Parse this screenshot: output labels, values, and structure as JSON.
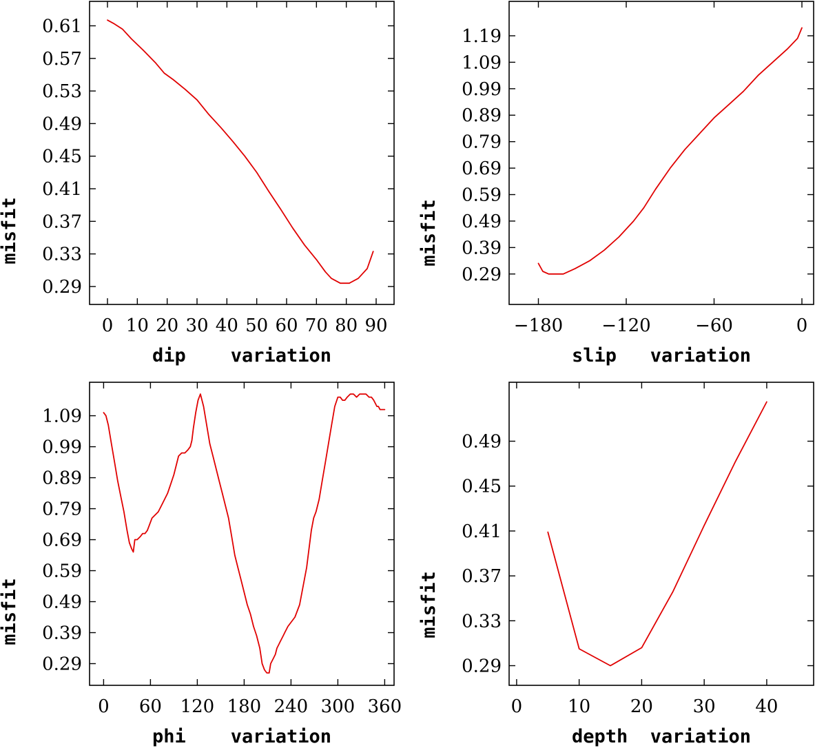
{
  "colors": {
    "series": "#e00000",
    "axes": "#000000",
    "background": "#ffffff"
  },
  "chart_data": [
    {
      "type": "line",
      "xlabel": "dip    variation",
      "ylabel": "misfit",
      "xlim": [
        -6,
        96
      ],
      "ylim": [
        0.268,
        0.64
      ],
      "xticks": [
        0,
        10,
        20,
        30,
        40,
        50,
        60,
        70,
        80,
        90
      ],
      "xtick_labels": [
        "0",
        "10",
        "20",
        "30",
        "40",
        "50",
        "60",
        "70",
        "80",
        "90"
      ],
      "yticks": [
        0.29,
        0.33,
        0.37,
        0.41,
        0.45,
        0.49,
        0.53,
        0.57,
        0.61
      ],
      "ytick_labels": [
        "0.29",
        "0.33",
        "0.37",
        "0.41",
        "0.45",
        "0.49",
        "0.53",
        "0.57",
        "0.61"
      ],
      "series": [
        {
          "name": "misfit",
          "x": [
            0,
            2,
            5,
            8,
            12,
            16,
            19,
            22,
            26,
            30,
            34,
            38,
            42,
            46,
            50,
            54,
            58,
            62,
            66,
            70,
            73,
            75,
            78,
            81,
            84,
            87,
            89
          ],
          "y": [
            0.617,
            0.613,
            0.606,
            0.594,
            0.58,
            0.565,
            0.552,
            0.544,
            0.532,
            0.519,
            0.501,
            0.485,
            0.468,
            0.45,
            0.43,
            0.407,
            0.385,
            0.362,
            0.341,
            0.323,
            0.308,
            0.3,
            0.294,
            0.294,
            0.3,
            0.312,
            0.333
          ]
        }
      ]
    },
    {
      "type": "line",
      "xlabel": "slip   variation",
      "ylabel": "misfit",
      "xlim": [
        -200,
        8
      ],
      "ylim": [
        0.175,
        1.32
      ],
      "xticks": [
        -180,
        -120,
        -60,
        0
      ],
      "xtick_labels": [
        "−180",
        "−120",
        "−60",
        "0"
      ],
      "yticks": [
        0.29,
        0.39,
        0.49,
        0.59,
        0.69,
        0.79,
        0.89,
        0.99,
        1.09,
        1.19
      ],
      "ytick_labels": [
        "0.29",
        "0.39",
        "0.49",
        "0.59",
        "0.69",
        "0.79",
        "0.89",
        "0.99",
        "1.09",
        "1.19"
      ],
      "series": [
        {
          "name": "misfit",
          "x": [
            -180,
            -177,
            -173,
            -168,
            -163,
            -155,
            -145,
            -135,
            -125,
            -115,
            -108,
            -100,
            -90,
            -80,
            -70,
            -60,
            -50,
            -40,
            -30,
            -20,
            -10,
            -3,
            0
          ],
          "y": [
            0.33,
            0.3,
            0.29,
            0.29,
            0.29,
            0.31,
            0.34,
            0.38,
            0.43,
            0.49,
            0.54,
            0.61,
            0.69,
            0.76,
            0.82,
            0.88,
            0.93,
            0.98,
            1.04,
            1.09,
            1.14,
            1.18,
            1.22
          ]
        }
      ]
    },
    {
      "type": "line",
      "xlabel": "phi    variation",
      "ylabel": "misfit",
      "xlim": [
        -18,
        372
      ],
      "ylim": [
        0.22,
        1.198
      ],
      "xticks": [
        0,
        60,
        120,
        180,
        240,
        300,
        360
      ],
      "xtick_labels": [
        "0",
        "60",
        "120",
        "180",
        "240",
        "300",
        "360"
      ],
      "yticks": [
        0.29,
        0.39,
        0.49,
        0.59,
        0.69,
        0.79,
        0.89,
        0.99,
        1.09
      ],
      "ytick_labels": [
        "0.29",
        "0.39",
        "0.49",
        "0.59",
        "0.69",
        "0.79",
        "0.89",
        "0.99",
        "1.09"
      ],
      "series": [
        {
          "name": "misfit",
          "x": [
            0,
            3,
            6,
            10,
            14,
            18,
            22,
            26,
            30,
            33,
            36,
            38,
            40,
            43,
            47,
            50,
            53,
            56,
            59,
            62,
            66,
            70,
            74,
            78,
            82,
            86,
            90,
            93,
            96,
            100,
            104,
            108,
            111,
            113,
            115,
            118,
            121,
            124,
            128,
            132,
            136,
            140,
            144,
            148,
            152,
            156,
            160,
            164,
            168,
            172,
            176,
            180,
            184,
            188,
            192,
            196,
            200,
            203,
            206,
            209,
            212,
            214,
            216,
            218,
            220,
            222,
            224,
            226,
            228,
            230,
            232,
            234,
            236,
            239,
            242,
            245,
            248,
            251,
            254,
            257,
            260,
            263,
            266,
            269,
            272,
            276,
            280,
            284,
            288,
            292,
            296,
            300,
            303,
            306,
            309,
            312,
            316,
            320,
            324,
            328,
            332,
            336,
            340,
            343,
            346,
            348,
            350,
            352,
            354,
            356,
            360
          ],
          "y": [
            1.1,
            1.09,
            1.06,
            1.0,
            0.94,
            0.88,
            0.83,
            0.78,
            0.72,
            0.68,
            0.66,
            0.65,
            0.69,
            0.69,
            0.7,
            0.71,
            0.71,
            0.72,
            0.74,
            0.76,
            0.77,
            0.78,
            0.8,
            0.82,
            0.84,
            0.87,
            0.9,
            0.93,
            0.96,
            0.97,
            0.97,
            0.98,
            0.99,
            1.01,
            1.05,
            1.1,
            1.14,
            1.16,
            1.12,
            1.06,
            1.0,
            0.96,
            0.92,
            0.88,
            0.84,
            0.8,
            0.76,
            0.7,
            0.64,
            0.6,
            0.56,
            0.52,
            0.48,
            0.45,
            0.41,
            0.38,
            0.34,
            0.29,
            0.27,
            0.26,
            0.26,
            0.29,
            0.3,
            0.31,
            0.32,
            0.34,
            0.35,
            0.36,
            0.37,
            0.38,
            0.39,
            0.4,
            0.41,
            0.42,
            0.43,
            0.44,
            0.46,
            0.48,
            0.52,
            0.56,
            0.6,
            0.66,
            0.72,
            0.76,
            0.78,
            0.82,
            0.88,
            0.94,
            1.0,
            1.06,
            1.12,
            1.15,
            1.15,
            1.14,
            1.14,
            1.15,
            1.16,
            1.16,
            1.15,
            1.16,
            1.16,
            1.16,
            1.15,
            1.15,
            1.14,
            1.13,
            1.12,
            1.12,
            1.11,
            1.11,
            1.11
          ]
        }
      ]
    },
    {
      "type": "line",
      "xlabel": "depth  variation",
      "ylabel": "misfit",
      "xlim": [
        -1.2,
        47.5
      ],
      "ylim": [
        0.2725,
        0.5425
      ],
      "xticks": [
        0,
        10,
        20,
        30,
        40
      ],
      "xtick_labels": [
        "0",
        "10",
        "20",
        "30",
        "40"
      ],
      "yticks": [
        0.29,
        0.33,
        0.37,
        0.41,
        0.45,
        0.49
      ],
      "ytick_labels": [
        "0.29",
        "0.33",
        "0.37",
        "0.41",
        "0.45",
        "0.49"
      ],
      "series": [
        {
          "name": "misfit",
          "x": [
            5,
            10,
            15,
            20,
            25,
            30,
            35,
            40
          ],
          "y": [
            0.409,
            0.305,
            0.29,
            0.306,
            0.356,
            0.415,
            0.472,
            0.525
          ]
        }
      ]
    }
  ]
}
